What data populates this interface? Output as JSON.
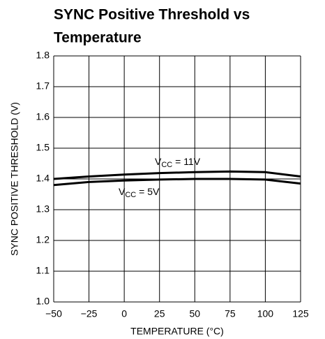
{
  "chart_data": {
    "type": "line",
    "title_lines": [
      "SYNC Positive Threshold vs",
      "Temperature"
    ],
    "xlabel": "TEMPERATURE (°C)",
    "ylabel": "SYNC POSITIVE THRESHOLD (V)",
    "x": [
      -50,
      -25,
      0,
      25,
      50,
      75,
      100,
      125
    ],
    "series": [
      {
        "color": "#000000",
        "values": [
          1.4,
          1.408,
          1.414,
          1.419,
          1.422,
          1.424,
          1.422,
          1.408
        ]
      },
      {
        "color": "#000000",
        "values": [
          1.38,
          1.39,
          1.395,
          1.398,
          1.4,
          1.4,
          1.398,
          1.385
        ]
      }
    ],
    "annotations": [
      {
        "base": "V",
        "sub": "CC",
        "text": " = 11V"
      },
      {
        "base": "V",
        "sub": "CC",
        "text": " = 5V"
      }
    ],
    "xlim": [
      -50,
      125
    ],
    "xticks": [
      {
        "value": -50,
        "label": "−50"
      },
      {
        "value": -25,
        "label": "−25"
      },
      0,
      25,
      50,
      75,
      100,
      125
    ],
    "ylim": [
      1.0,
      1.8
    ],
    "yticks": [
      {
        "value": 1.0,
        "label": "1.0"
      },
      1.1,
      1.2,
      1.3,
      1.4,
      1.5,
      1.6,
      1.7,
      {
        "value": 1.8,
        "label": "1.8"
      }
    ],
    "grid": true
  }
}
